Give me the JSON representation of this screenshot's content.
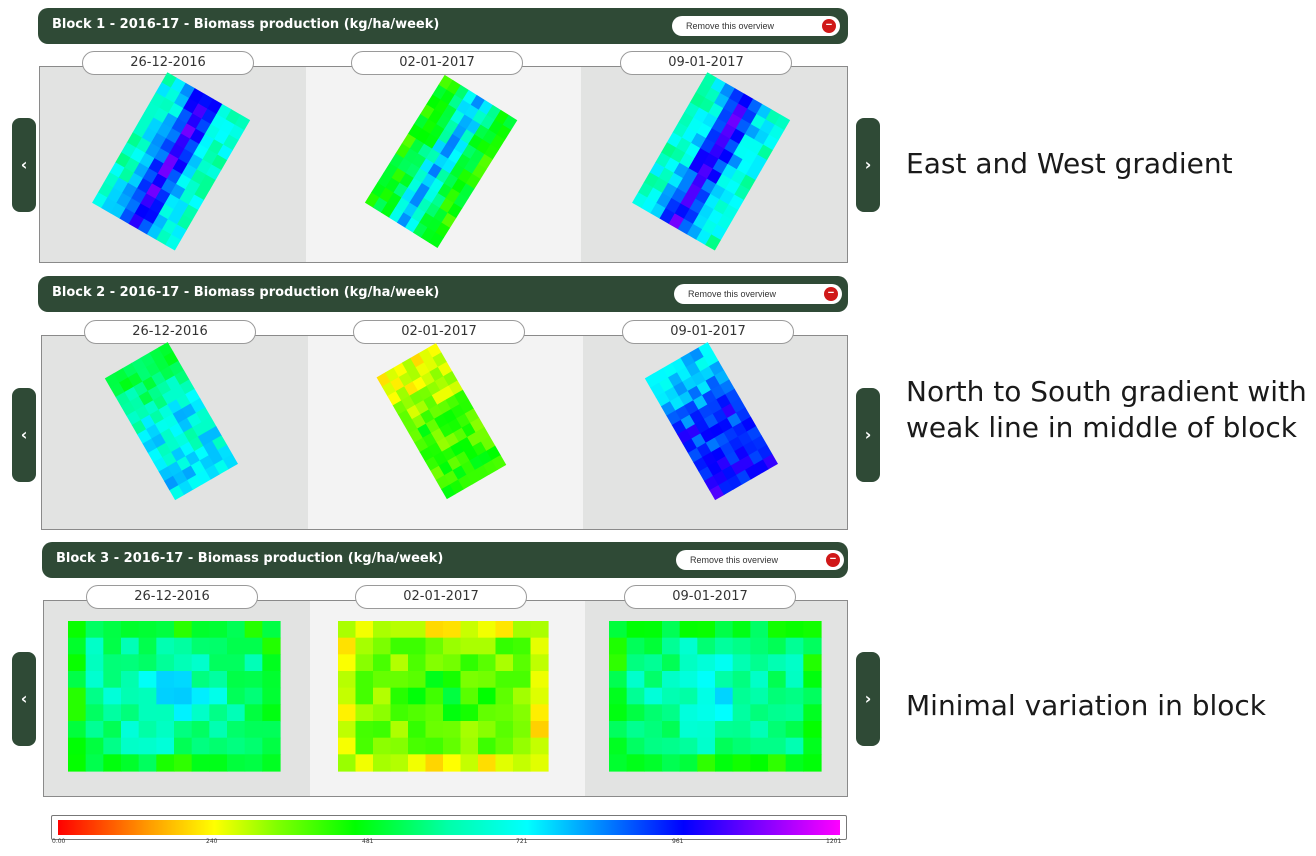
{
  "blocks": [
    {
      "title": "Block 1 - 2016-17 - Biomass production (kg/ha/week)",
      "remove_label": "Remove this overview",
      "dates": [
        "26-12-2016",
        "02-01-2017",
        "09-01-2017"
      ],
      "caption": [
        "East and West gradient"
      ]
    },
    {
      "title": "Block 2 - 2016-17 - Biomass production (kg/ha/week)",
      "remove_label": "Remove this overview",
      "dates": [
        "26-12-2016",
        "02-01-2017",
        "09-01-2017"
      ],
      "caption": [
        "North to South gradient with",
        "weak line in middle of block"
      ]
    },
    {
      "title": "Block 3 - 2016-17 - Biomass production (kg/ha/week)",
      "remove_label": "Remove this overview",
      "dates": [
        "26-12-2016",
        "02-01-2017",
        "09-01-2017"
      ],
      "caption": [
        "Minimal variation in block"
      ]
    }
  ],
  "nav": {
    "prev_label": "‹",
    "next_label": "›"
  },
  "scale": {
    "ticks": [
      "0.00",
      "240",
      "481",
      "721",
      "961",
      "1201"
    ]
  },
  "icons": {
    "remove": "remove-circle-icon",
    "prev": "chevron-left-icon",
    "next": "chevron-right-icon"
  },
  "colors": {
    "header": "#2f4a36",
    "remove": "#d01818",
    "panel": "#e2e3e2"
  }
}
